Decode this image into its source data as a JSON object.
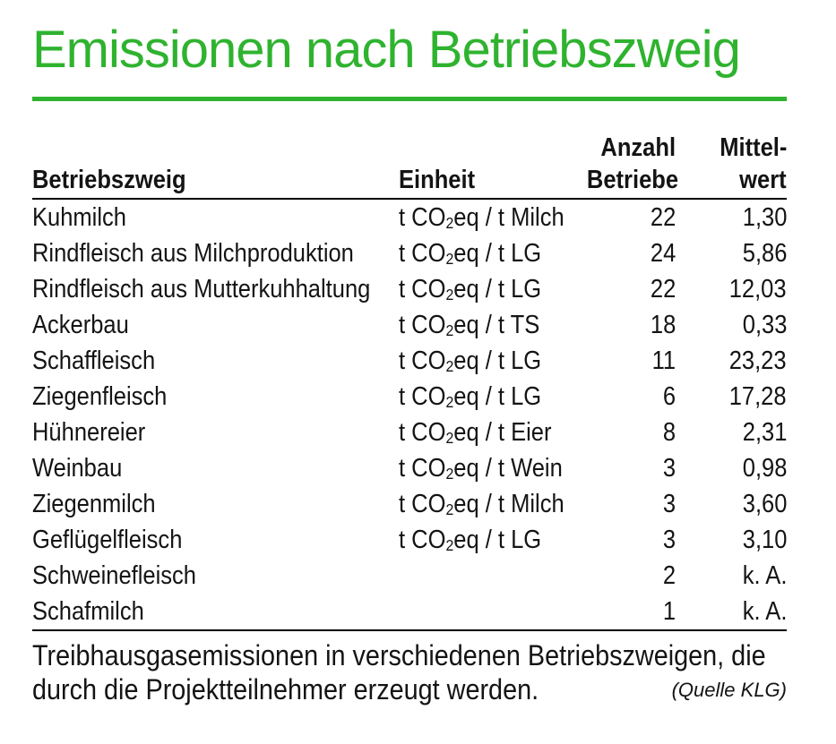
{
  "title": "Emissionen nach Betriebszweig",
  "colors": {
    "accent_green": "#2fb32f",
    "text": "#141414"
  },
  "table": {
    "headers": {
      "col1": "Betriebszweig",
      "col2": "Einheit",
      "col3_line1": "Anzahl",
      "col3_line2": "Betriebe",
      "col4_line1": "Mittel-",
      "col4_line2": "wert"
    },
    "rows": [
      {
        "name": "Kuhmilch",
        "unit_pre": "t CO",
        "unit_sub": "2",
        "unit_post": "eq / t Milch",
        "count": "22",
        "mean": "1,30"
      },
      {
        "name": "Rindfleisch aus Milchproduktion",
        "unit_pre": "t CO",
        "unit_sub": "2",
        "unit_post": "eq / t LG",
        "count": "24",
        "mean": "5,86"
      },
      {
        "name": "Rindfleisch aus Mutterkuhhaltung",
        "unit_pre": "t CO",
        "unit_sub": "2",
        "unit_post": "eq / t LG",
        "count": "22",
        "mean": "12,03"
      },
      {
        "name": "Ackerbau",
        "unit_pre": "t CO",
        "unit_sub": "2",
        "unit_post": "eq / t TS",
        "count": "18",
        "mean": "0,33"
      },
      {
        "name": "Schaffleisch",
        "unit_pre": "t CO",
        "unit_sub": "2",
        "unit_post": "eq / t LG",
        "count": "11",
        "mean": "23,23"
      },
      {
        "name": "Ziegenfleisch",
        "unit_pre": "t CO",
        "unit_sub": "2",
        "unit_post": "eq / t LG",
        "count": "6",
        "mean": "17,28"
      },
      {
        "name": "Hühnereier",
        "unit_pre": "t CO",
        "unit_sub": "2",
        "unit_post": "eq / t Eier",
        "count": "8",
        "mean": "2,31"
      },
      {
        "name": "Weinbau",
        "unit_pre": "t CO",
        "unit_sub": "2",
        "unit_post": "eq / t Wein",
        "count": "3",
        "mean": "0,98"
      },
      {
        "name": "Ziegenmilch",
        "unit_pre": "t CO",
        "unit_sub": "2",
        "unit_post": "eq / t Milch",
        "count": "3",
        "mean": "3,60"
      },
      {
        "name": "Geflügelfleisch",
        "unit_pre": "t CO",
        "unit_sub": "2",
        "unit_post": "eq / t LG",
        "count": "3",
        "mean": "3,10"
      },
      {
        "name": "Schweinefleisch",
        "unit_pre": "",
        "unit_sub": "",
        "unit_post": "",
        "count": "2",
        "mean": "k. A."
      },
      {
        "name": "Schafmilch",
        "unit_pre": "",
        "unit_sub": "",
        "unit_post": "",
        "count": "1",
        "mean": "k. A."
      }
    ]
  },
  "caption": {
    "text": "Treibhausgasemissionen in verschiedenen Betriebszweigen, die durch die Projektteilnehmer erzeugt werden.",
    "source": "(Quelle KLG)"
  }
}
